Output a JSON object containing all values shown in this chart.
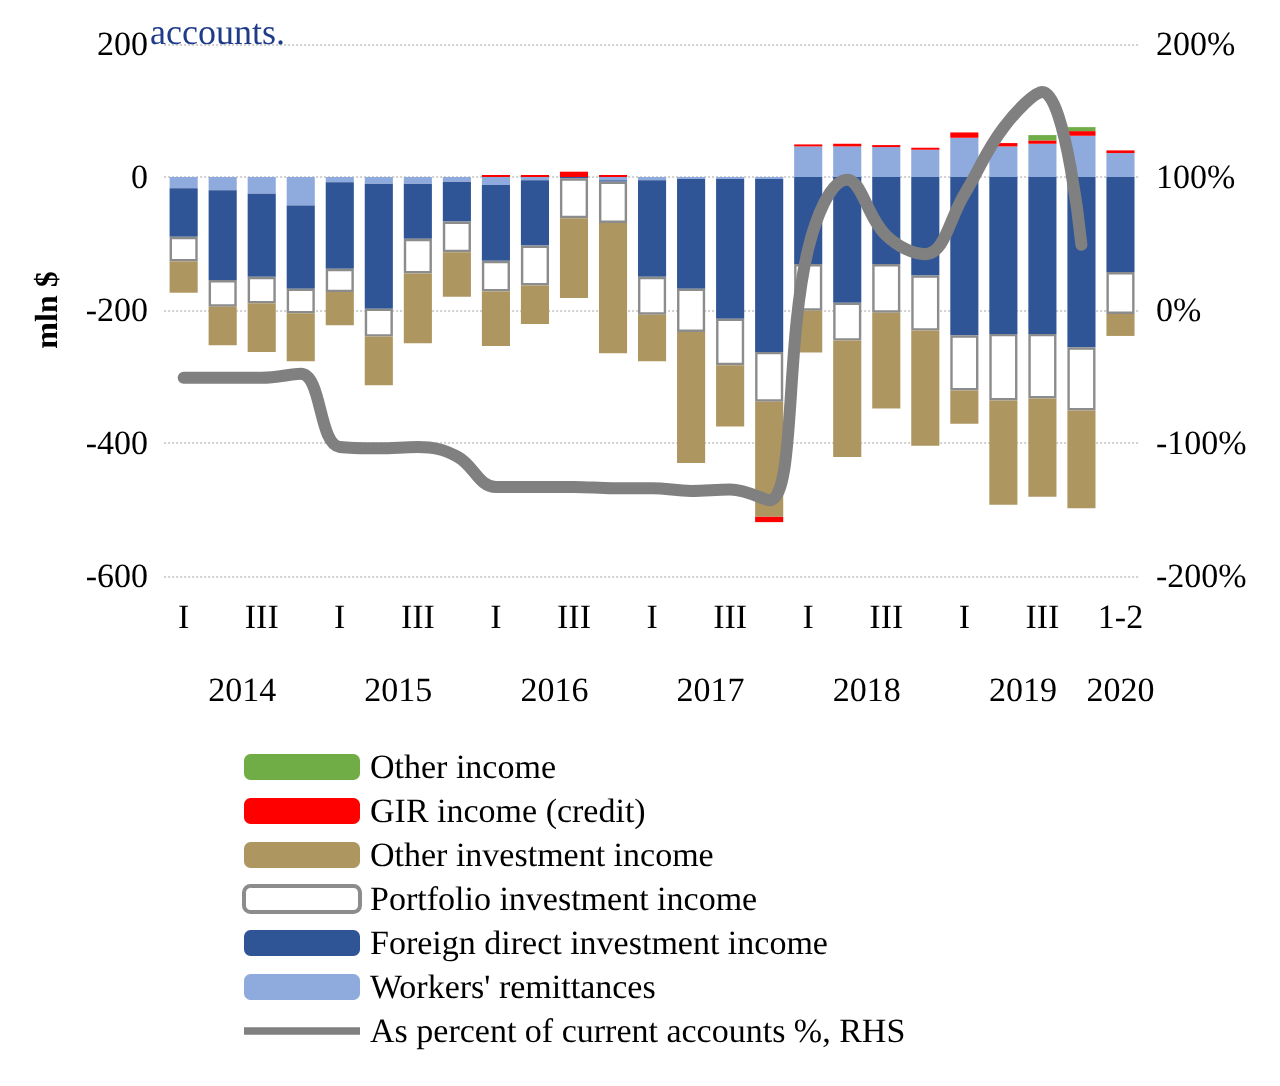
{
  "chart_data": {
    "type": "bar",
    "title": "accounts.",
    "ylabel": "mln $",
    "stacked": true,
    "categories": [
      "I",
      null,
      "III",
      null,
      "I",
      null,
      "III",
      null,
      "I",
      null,
      "III",
      null,
      "I",
      null,
      "III",
      null,
      "I",
      null,
      "III",
      null,
      "I",
      null,
      "III",
      null,
      "1-2"
    ],
    "annotations": [
      "2014",
      "2015",
      "2016",
      "2017",
      "2018",
      "2019",
      "2020"
    ],
    "series": [
      {
        "name": "Workers' remittances",
        "color": "#8faadc",
        "values": [
          -17,
          -20,
          -25,
          -43,
          -8,
          -10,
          -10,
          -7,
          -12,
          -5,
          null,
          -5,
          -5,
          -3,
          -3,
          -3,
          46,
          46,
          45,
          41,
          59,
          46,
          50,
          62,
          36
        ]
      },
      {
        "name": "Foreign direct investment income",
        "color": "#2f5597",
        "values": [
          -73,
          -135,
          -125,
          -125,
          -130,
          -188,
          -83,
          -60,
          -114,
          -98,
          -2,
          -2,
          -145,
          -165,
          -210,
          -260,
          -131,
          -189,
          -131,
          -148,
          -238,
          -236,
          -236,
          -256,
          -143
        ]
      },
      {
        "name": "Portfolio investment income",
        "color": "#ffffff",
        "values": [
          -37,
          -40,
          -40,
          -37,
          -35,
          -42,
          -52,
          -46,
          -46,
          -60,
          -60,
          -62,
          -57,
          -65,
          -70,
          -75,
          -70,
          -57,
          -73,
          -83,
          -83,
          -100,
          -97,
          -95,
          -63
        ]
      },
      {
        "name": "Other investment income",
        "color": "#ae9660",
        "values": [
          -47,
          -58,
          -73,
          -72,
          -50,
          -73,
          -105,
          -67,
          -82,
          -58,
          -120,
          -196,
          -70,
          -197,
          -92,
          -173,
          -63,
          -175,
          -144,
          -173,
          -50,
          -157,
          -148,
          -147,
          -33
        ]
      },
      {
        "name": "GIR income (credit)",
        "color": "#ff0000",
        "values": [
          null,
          null,
          null,
          null,
          null,
          null,
          null,
          null,
          3,
          3,
          8,
          3,
          null,
          null,
          null,
          -8,
          3,
          4,
          3,
          3,
          8,
          5,
          5,
          7,
          4
        ]
      },
      {
        "name": "Other income",
        "color": "#70ad47",
        "values": [
          null,
          null,
          null,
          null,
          null,
          null,
          null,
          null,
          null,
          null,
          null,
          null,
          null,
          null,
          null,
          null,
          null,
          null,
          null,
          null,
          null,
          null,
          8,
          6,
          null
        ]
      },
      {
        "name": "As percent of current accounts %, RHS",
        "type": "line",
        "axis": "y2",
        "color": "#808080",
        "values": [
          -51,
          -51,
          -51,
          -48,
          -103,
          -104,
          -103,
          -110,
          -133,
          -133,
          -133,
          -134,
          -134,
          -136,
          -135,
          -143,
          46,
          98,
          56,
          42,
          87,
          137,
          164,
          49,
          null
        ]
      }
    ],
    "ylim": [
      -600,
      200
    ],
    "yticks": [
      -600,
      -400,
      -200,
      0,
      200
    ],
    "y2lim": [
      -200,
      200
    ],
    "y2ticks": [
      {
        "value": -200,
        "label": "-200%"
      },
      {
        "value": -100,
        "label": "-100%"
      },
      {
        "value": 0,
        "label": "0%"
      },
      {
        "value": 100,
        "label": "100%"
      },
      {
        "value": 200,
        "label": "200%"
      }
    ],
    "grid": "y",
    "legend": "bottom",
    "marker": "none",
    "line_style": "solid"
  }
}
